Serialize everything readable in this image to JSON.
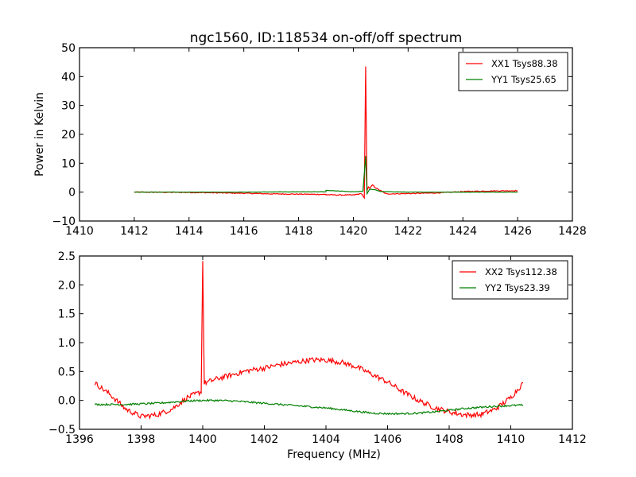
{
  "chart_data": [
    {
      "type": "line",
      "title": "ngc1560, ID:118534 on-off/off spectrum",
      "xlabel": "",
      "ylabel": "Power in Kelvin",
      "xlim": [
        1410,
        1428
      ],
      "ylim": [
        -10,
        50
      ],
      "xticks": [
        1410,
        1412,
        1414,
        1416,
        1418,
        1420,
        1422,
        1424,
        1426,
        1428
      ],
      "xtick_labels": [
        "1410",
        "1412",
        "1414",
        "1416",
        "1418",
        "1420",
        "1422",
        "1424",
        "1426",
        "1428"
      ],
      "yticks": [
        -10,
        0,
        10,
        20,
        30,
        40,
        50
      ],
      "ytick_labels": [
        "−10",
        "0",
        "10",
        "20",
        "30",
        "40",
        "50"
      ],
      "grid": false,
      "legend_position": "top-right",
      "series": [
        {
          "name": "XX1 Tsys88.38",
          "color": "#ff0000",
          "x": [
            1412,
            1414,
            1416,
            1417,
            1418,
            1419,
            1419.0,
            1419.5,
            1420.0,
            1420.3,
            1420.4,
            1420.45,
            1420.5,
            1420.55,
            1420.6,
            1420.7,
            1420.8,
            1420.9,
            1421.0,
            1421.2,
            1422,
            1423,
            1424,
            1425,
            1426
          ],
          "y": [
            0.0,
            -0.1,
            -0.4,
            -0.6,
            -0.7,
            -0.8,
            -0.9,
            -1.0,
            -1.0,
            -0.5,
            -2.0,
            43.5,
            0.5,
            1.8,
            1.2,
            2.5,
            1.6,
            1.0,
            0.5,
            -0.6,
            -0.5,
            -0.3,
            0.2,
            0.4,
            0.5
          ]
        },
        {
          "name": "YY1 Tsys25.65",
          "color": "#008000",
          "x": [
            1412,
            1414,
            1416,
            1418,
            1419,
            1419.0,
            1420.0,
            1420.35,
            1420.45,
            1420.5,
            1420.6,
            1420.8,
            1421.0,
            1422,
            1424,
            1426
          ],
          "y": [
            0.0,
            0.0,
            0.0,
            0.1,
            0.1,
            0.6,
            0.1,
            0.3,
            12.5,
            -0.5,
            1.0,
            0.8,
            0.2,
            0.0,
            0.0,
            0.0
          ]
        }
      ]
    },
    {
      "type": "line",
      "title": "",
      "xlabel": "Frequency (MHz)",
      "ylabel": "",
      "xlim": [
        1396,
        1412
      ],
      "ylim": [
        -0.5,
        2.5
      ],
      "xticks": [
        1396,
        1398,
        1400,
        1402,
        1404,
        1406,
        1408,
        1410,
        1412
      ],
      "xtick_labels": [
        "1396",
        "1398",
        "1400",
        "1402",
        "1404",
        "1406",
        "1408",
        "1410",
        "1412"
      ],
      "yticks": [
        -0.5,
        0.0,
        0.5,
        1.0,
        1.5,
        2.0,
        2.5
      ],
      "ytick_labels": [
        "−0.5",
        "0.0",
        "0.5",
        "1.0",
        "1.5",
        "2.0",
        "2.5"
      ],
      "grid": false,
      "legend_position": "top-right",
      "series": [
        {
          "name": "XX2 Tsys112.38",
          "color": "#ff0000",
          "x": [
            1396.5,
            1397.0,
            1397.5,
            1398.0,
            1398.5,
            1399.0,
            1399.5,
            1399.95,
            1400.0,
            1400.05,
            1400.5,
            1401.0,
            1401.5,
            1402.0,
            1402.5,
            1403.0,
            1403.5,
            1404.0,
            1404.5,
            1405.0,
            1405.5,
            1406.0,
            1406.5,
            1407.0,
            1407.5,
            1408.0,
            1408.5,
            1409.0,
            1409.5,
            1410.0,
            1410.4
          ],
          "y": [
            0.3,
            0.1,
            -0.15,
            -0.28,
            -0.25,
            -0.15,
            0.05,
            0.15,
            2.45,
            0.3,
            0.38,
            0.45,
            0.52,
            0.56,
            0.62,
            0.66,
            0.7,
            0.7,
            0.66,
            0.58,
            0.45,
            0.32,
            0.15,
            0.0,
            -0.12,
            -0.2,
            -0.25,
            -0.25,
            -0.15,
            0.05,
            0.3
          ]
        },
        {
          "name": "YY2 Tsys23.39",
          "color": "#008000",
          "x": [
            1396.5,
            1397.0,
            1397.5,
            1398.0,
            1398.5,
            1399.0,
            1399.5,
            1400.0,
            1400.5,
            1401.0,
            1401.5,
            1402.0,
            1402.5,
            1403.0,
            1403.5,
            1404.0,
            1404.5,
            1405.0,
            1405.5,
            1406.0,
            1406.5,
            1407.0,
            1407.5,
            1408.0,
            1408.5,
            1409.0,
            1409.5,
            1410.0,
            1410.4
          ],
          "y": [
            -0.07,
            -0.07,
            -0.07,
            -0.06,
            -0.05,
            -0.03,
            -0.01,
            0.0,
            0.0,
            -0.01,
            -0.03,
            -0.05,
            -0.07,
            -0.09,
            -0.11,
            -0.13,
            -0.16,
            -0.19,
            -0.22,
            -0.23,
            -0.23,
            -0.22,
            -0.2,
            -0.17,
            -0.14,
            -0.12,
            -0.1,
            -0.09,
            -0.08
          ]
        }
      ]
    }
  ]
}
